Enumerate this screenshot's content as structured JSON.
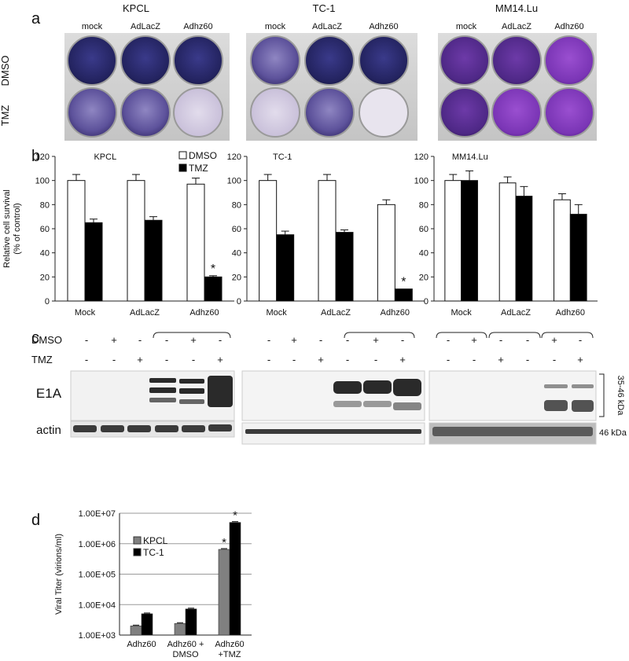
{
  "panel_a": {
    "letter": "a",
    "row_labels": [
      "DMSO",
      "TMZ"
    ],
    "plates": [
      {
        "cell_line": "KPCL",
        "columns": [
          "mock",
          "AdLacZ",
          "Adhz60"
        ]
      },
      {
        "cell_line": "TC-1",
        "columns": [
          "mock",
          "AdLacZ",
          "Adhz60"
        ]
      },
      {
        "cell_line": "MM14.Lu",
        "columns": [
          "mock",
          "AdLacZ",
          "Adhz60"
        ]
      }
    ]
  },
  "panel_c": {
    "letter": "c",
    "row_labels": [
      "DMSO",
      "TMZ"
    ],
    "lane_signs": {
      "dmso": [
        "-",
        "+",
        "-",
        "-",
        "+",
        "-"
      ],
      "tmz": [
        "-",
        "-",
        "+",
        "-",
        "-",
        "+"
      ]
    },
    "bands": [
      "E1A",
      "actin"
    ],
    "size_labels": [
      "35-46 kDa",
      "46 kDa"
    ]
  },
  "chart_data": [
    {
      "id": "b-kpcl",
      "panel": "b",
      "type": "bar",
      "title": "KPCL",
      "ylabel": "Relative cell survival\n(% of control)",
      "ylim": [
        0,
        120
      ],
      "yticks": [
        0,
        20,
        40,
        60,
        80,
        100,
        120
      ],
      "categories": [
        "Mock",
        "AdLacZ",
        "Adhz60"
      ],
      "series": [
        {
          "name": "DMSO",
          "color": "#ffffff",
          "values": [
            100,
            100,
            97
          ],
          "errors": [
            5,
            5,
            5
          ]
        },
        {
          "name": "TMZ",
          "color": "#000000",
          "values": [
            65,
            67,
            20
          ],
          "errors": [
            3,
            3,
            1
          ]
        }
      ],
      "significance": [
        {
          "category": "Adhz60",
          "series": "TMZ",
          "label": "*"
        }
      ],
      "legend": "top-right"
    },
    {
      "id": "b-tc1",
      "panel": "b",
      "type": "bar",
      "title": "TC-1",
      "ylim": [
        0,
        120
      ],
      "yticks": [
        0,
        20,
        40,
        60,
        80,
        100,
        120
      ],
      "categories": [
        "Mock",
        "AdLacZ",
        "Adhz60"
      ],
      "series": [
        {
          "name": "DMSO",
          "color": "#ffffff",
          "values": [
            100,
            100,
            80
          ],
          "errors": [
            5,
            5,
            4
          ]
        },
        {
          "name": "TMZ",
          "color": "#000000",
          "values": [
            55,
            57,
            10
          ],
          "errors": [
            3,
            2,
            0
          ]
        }
      ],
      "significance": [
        {
          "category": "Adhz60",
          "series": "TMZ",
          "label": "*"
        }
      ]
    },
    {
      "id": "b-mm14",
      "panel": "b",
      "type": "bar",
      "title": "MM14.Lu",
      "ylim": [
        0,
        120
      ],
      "yticks": [
        0,
        20,
        40,
        60,
        80,
        100,
        120
      ],
      "categories": [
        "Mock",
        "AdLacZ",
        "Adhz60"
      ],
      "series": [
        {
          "name": "DMSO",
          "color": "#ffffff",
          "values": [
            100,
            98,
            84
          ],
          "errors": [
            5,
            5,
            5
          ]
        },
        {
          "name": "TMZ",
          "color": "#000000",
          "values": [
            100,
            87,
            72
          ],
          "errors": [
            8,
            8,
            8
          ]
        }
      ]
    },
    {
      "id": "d-titer",
      "panel": "d",
      "type": "bar",
      "scale": "log",
      "ylabel": "Viral Titer (virions/ml)",
      "ylim": [
        1000,
        10000000
      ],
      "yticks": [
        "1.00E+03",
        "1.00E+04",
        "1.00E+05",
        "1.00E+06",
        "1.00E+07"
      ],
      "categories": [
        "Adhz60",
        "Adhz60 +\nDMSO",
        "Adhz60\n+TMZ"
      ],
      "series": [
        {
          "name": "KPCL",
          "color": "#808080",
          "values": [
            2000,
            2400,
            650000
          ]
        },
        {
          "name": "TC-1",
          "color": "#000000",
          "values": [
            5000,
            7200,
            5000000
          ]
        }
      ],
      "significance": [
        {
          "category": "Adhz60\n+TMZ",
          "series": "KPCL",
          "label": "*"
        },
        {
          "category": "Adhz60\n+TMZ",
          "series": "TC-1",
          "label": "*"
        }
      ],
      "legend": "left",
      "grid": true
    }
  ]
}
